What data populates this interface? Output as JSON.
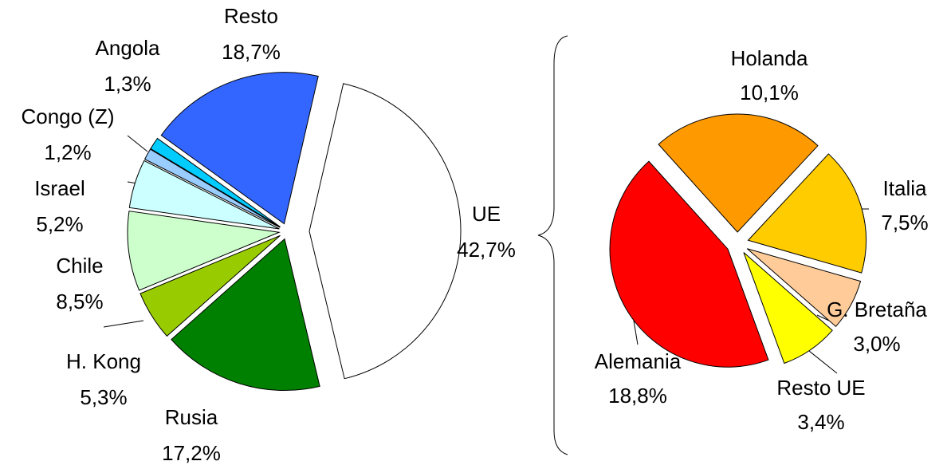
{
  "chart_data": [
    {
      "type": "pie",
      "categories": [
        "UE",
        "Rusia",
        "H. Kong",
        "Chile",
        "Israel",
        "Congo (Z)",
        "Angola",
        "Resto"
      ],
      "values": [
        42.7,
        17.2,
        5.3,
        8.5,
        5.2,
        1.2,
        1.3,
        18.7
      ],
      "value_labels": [
        "42,7%",
        "17,2%",
        "5,3%",
        "8,5%",
        "5,2%",
        "1,2%",
        "1,3%",
        "18,7%"
      ],
      "colors": [
        "#ffffff",
        "#008000",
        "#99cc00",
        "#ccffcc",
        "#ccffff",
        "#99ccff",
        "#00ccff",
        "#3366ff"
      ]
    },
    {
      "type": "pie",
      "categories": [
        "Holanda",
        "Italia",
        "G. Bretaña",
        "Resto UE",
        "Alemania"
      ],
      "values": [
        10.1,
        7.5,
        3.0,
        3.4,
        18.8
      ],
      "value_labels": [
        "10,1%",
        "7,5%",
        "3,0%",
        "3,4%",
        "18,8%"
      ],
      "colors": [
        "#ff9900",
        "#ffcc00",
        "#ffcc99",
        "#ffff00",
        "#ff0000"
      ]
    }
  ]
}
